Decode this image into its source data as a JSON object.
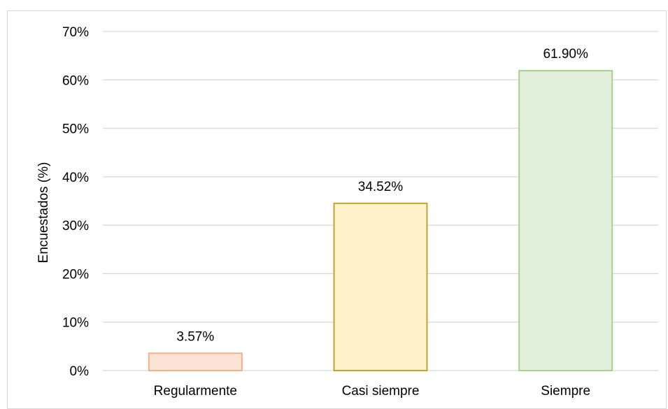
{
  "chart_data": {
    "type": "bar",
    "title": "",
    "xlabel": "",
    "ylabel": "Encuestados (%)",
    "ylim": [
      0,
      70
    ],
    "yticks": [
      0,
      10,
      20,
      30,
      40,
      50,
      60,
      70
    ],
    "ytick_suffix": "%",
    "grid": true,
    "categories": [
      "Regularmente",
      "Casi siempre",
      "Siempre"
    ],
    "values": [
      3.57,
      34.52,
      61.9
    ],
    "data_labels": [
      "3.57%",
      "34.52%",
      "61.90%"
    ],
    "bar_fills": [
      "#fbe3d6",
      "#fff2cc",
      "#e2efda"
    ],
    "bar_strokes": [
      "#f4b183",
      "#c9a227",
      "#a9d18e"
    ]
  }
}
